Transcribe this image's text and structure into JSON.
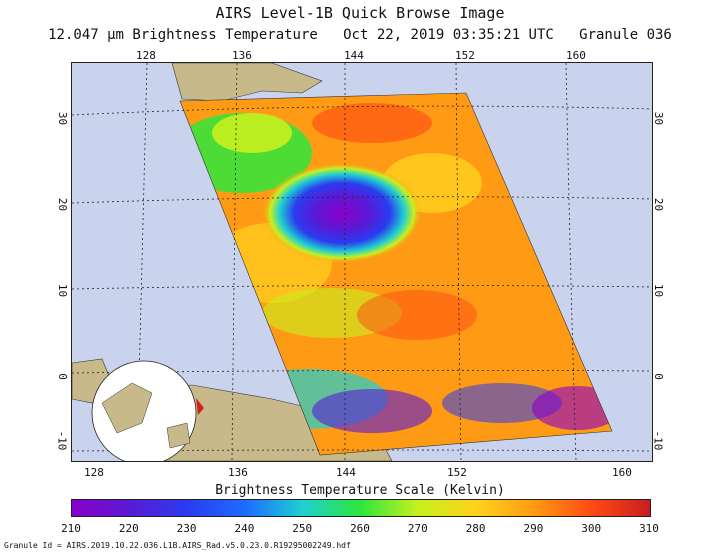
{
  "header": {
    "title": "AIRS Level-1B Quick Browse Image",
    "subtitle": "12.047 μm Brightness Temperature   Oct 22, 2019 03:35:21 UTC   Granule 036"
  },
  "map": {
    "top_lon_labels": [
      "128",
      "136",
      "144",
      "152",
      "160"
    ],
    "bottom_lon_labels": [
      "128",
      "136",
      "144",
      "152",
      "160"
    ],
    "left_lat_labels": [
      "30",
      "20",
      "10",
      "0",
      "-10"
    ],
    "right_lat_labels": [
      "30",
      "20",
      "10",
      "0",
      "-10"
    ]
  },
  "scale": {
    "title": "Brightness Temperature Scale (Kelvin)",
    "ticks": [
      "210",
      "220",
      "230",
      "240",
      "250",
      "260",
      "270",
      "280",
      "290",
      "300",
      "310"
    ],
    "colors": [
      "#8a00c8",
      "#5a1ad6",
      "#2a3cf0",
      "#1e6cff",
      "#1fd0d0",
      "#2ee63c",
      "#c8f01e",
      "#ffd21e",
      "#ff9a14",
      "#ff4a14",
      "#c81e1e"
    ]
  },
  "footer": {
    "granule_id": "Granule Id = AIRS.2019.10.22.036.L1B.AIRS_Rad.v5.0.23.0.R19295002249.hdf"
  }
}
